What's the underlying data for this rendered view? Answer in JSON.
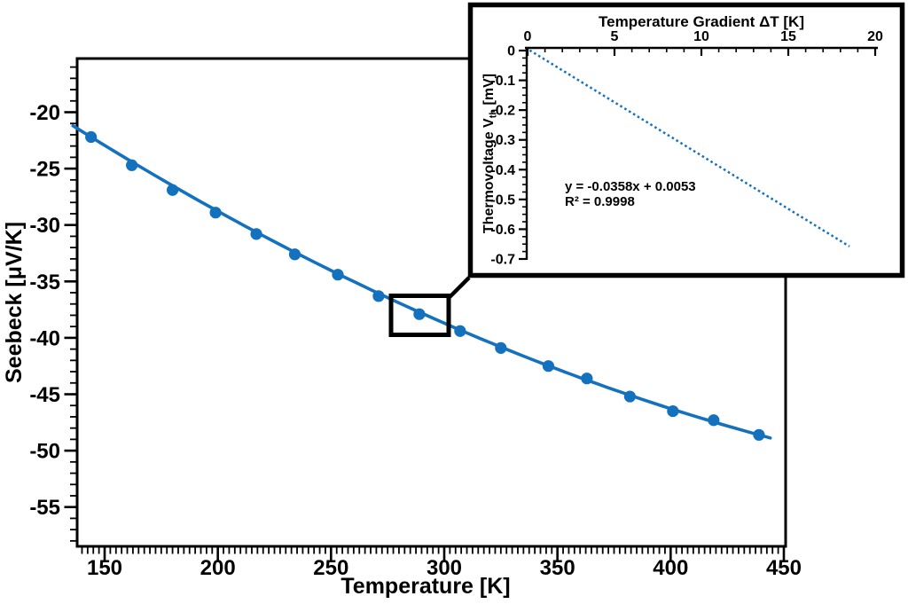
{
  "figure": {
    "background": "#ffffff",
    "frame_color": "#000000",
    "accent_blue": "#1471be"
  },
  "chart_data": [
    {
      "id": "main-plot",
      "type": "scatter",
      "title": "",
      "xlabel": "Temperature [K]",
      "ylabel": "Seebeck [μV/K]",
      "x_axis": {
        "tick_values": [
          150,
          200,
          250,
          300,
          350,
          400,
          450
        ],
        "tick_labels": [
          "150",
          "200",
          "250",
          "300",
          "350",
          "400",
          "450"
        ],
        "minor_step": 2.5,
        "range": [
          138,
          450.5
        ]
      },
      "y_axis": {
        "tick_values": [
          -20,
          -25,
          -30,
          -35,
          -40,
          -45,
          -50,
          -55
        ],
        "tick_labels": [
          "-20",
          "-25",
          "-30",
          "-35",
          "-40",
          "-45",
          "-50",
          "-55"
        ],
        "minor_step": 1,
        "range": [
          -58.5,
          -15.2
        ]
      },
      "grid": false,
      "legend": "none",
      "series": [
        {
          "name": "seebeck-data-points",
          "type": "scatter",
          "marker": "circle",
          "color": "#1471be",
          "x": [
            144,
            162,
            180,
            199,
            217,
            234,
            253,
            271,
            289,
            307,
            325,
            346,
            363,
            382,
            401,
            419,
            439
          ],
          "y": [
            -22.2,
            -24.7,
            -26.9,
            -28.9,
            -30.8,
            -32.6,
            -34.4,
            -36.3,
            -37.9,
            -39.4,
            -40.9,
            -42.5,
            -43.6,
            -45.2,
            -46.5,
            -47.3,
            -48.6
          ]
        },
        {
          "name": "smooth-fit-curve",
          "type": "line",
          "color": "#1471be",
          "quadratic": {
            "a": -1.9189,
            "b": -0.157685,
            "c": 0.00011697
          },
          "T_range": [
            136,
            444.5
          ]
        }
      ],
      "zoom_indicator": {
        "highlighted_point_T": 289,
        "highlighted_point_S": -37.9
      }
    },
    {
      "id": "inset-plot",
      "type": "scatter",
      "xlabel": "Temperature Gradient ΔT [K]",
      "ylabel_parts": {
        "main": "Thermovoltage V",
        "sub": "th",
        "unit": " [mV]"
      },
      "x_axis": {
        "tick_values": [
          0,
          5,
          10,
          15,
          20
        ],
        "tick_labels": [
          "0",
          "5",
          "10",
          "15",
          "20"
        ],
        "minor_step": 1,
        "range": [
          0,
          20.2
        ]
      },
      "y_axis": {
        "tick_values": [
          0,
          -0.1,
          -0.2,
          -0.3,
          -0.4,
          -0.5,
          -0.6,
          -0.7
        ],
        "tick_labels": [
          "0",
          "-0.1",
          "-0.2",
          "-0.3",
          "-0.4",
          "-0.5",
          "-0.6",
          "-0.7"
        ],
        "minor_step": 0.025,
        "range": [
          -0.73,
          0
        ]
      },
      "fit_line": {
        "slope": -0.0358,
        "intercept": 0.0053,
        "x_range": [
          0.12,
          18.52
        ],
        "style": "dotted",
        "color": "#1471be"
      },
      "annotation_line1": "y = -0.0358x + 0.0053",
      "annotation_line2": "R² = 0.9998"
    }
  ]
}
